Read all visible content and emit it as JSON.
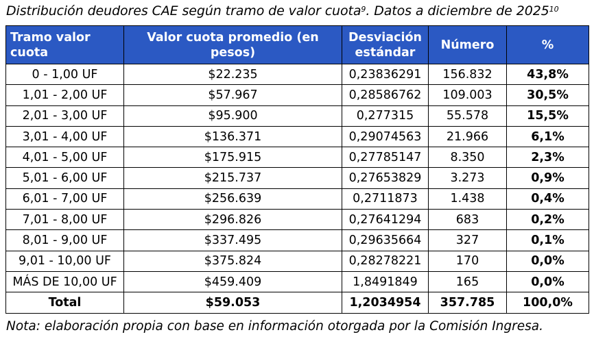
{
  "caption": {
    "text": "Distribución deudores CAE según tramo de valor cuota",
    "sup1": "9",
    "text2": ". Datos a diciembre de 2025",
    "sup2": "10"
  },
  "table": {
    "headers": {
      "tramo": "Tramo valor cuota",
      "valor": "Valor cuota promedio (en pesos)",
      "desviacion": "Desviación estándar",
      "numero": "Número",
      "pct": "%"
    },
    "header_color": "#2b59c3",
    "rows": [
      {
        "tramo": "0 - 1,00 UF",
        "valor": "$22.235",
        "desviacion": "0,23836291",
        "numero": "156.832",
        "pct": "43,8%"
      },
      {
        "tramo": "1,01 - 2,00 UF",
        "valor": "$57.967",
        "desviacion": "0,28586762",
        "numero": "109.003",
        "pct": "30,5%"
      },
      {
        "tramo": "2,01 - 3,00 UF",
        "valor": "$95.900",
        "desviacion": "0,277315",
        "numero": "55.578",
        "pct": "15,5%"
      },
      {
        "tramo": "3,01 - 4,00 UF",
        "valor": "$136.371",
        "desviacion": "0,29074563",
        "numero": "21.966",
        "pct": "6,1%"
      },
      {
        "tramo": "4,01 - 5,00 UF",
        "valor": "$175.915",
        "desviacion": "0,27785147",
        "numero": "8.350",
        "pct": "2,3%"
      },
      {
        "tramo": "5,01 - 6,00 UF",
        "valor": "$215.737",
        "desviacion": "0,27653829",
        "numero": "3.273",
        "pct": "0,9%"
      },
      {
        "tramo": "6,01 - 7,00 UF",
        "valor": "$256.639",
        "desviacion": "0,2711873",
        "numero": "1.438",
        "pct": "0,4%"
      },
      {
        "tramo": "7,01 - 8,00 UF",
        "valor": "$296.826",
        "desviacion": "0,27641294",
        "numero": "683",
        "pct": "0,2%"
      },
      {
        "tramo": "8,01 - 9,00 UF",
        "valor": "$337.495",
        "desviacion": "0,29635664",
        "numero": "327",
        "pct": "0,1%"
      },
      {
        "tramo": "9,01 - 10,00 UF",
        "valor": "$375.824",
        "desviacion": "0,28278221",
        "numero": "170",
        "pct": "0,0%"
      },
      {
        "tramo": "MÁS DE 10,00 UF",
        "valor": "$459.409",
        "desviacion": "1,8491849",
        "numero": "165",
        "pct": "0,0%"
      }
    ],
    "total": {
      "tramo": "Total",
      "valor": "$59.053",
      "desviacion": "1,2034954",
      "numero": "357.785",
      "pct": "100,0%"
    }
  },
  "note": "Nota: elaboración propia con base en información otorgada por la Comisión Ingresa."
}
